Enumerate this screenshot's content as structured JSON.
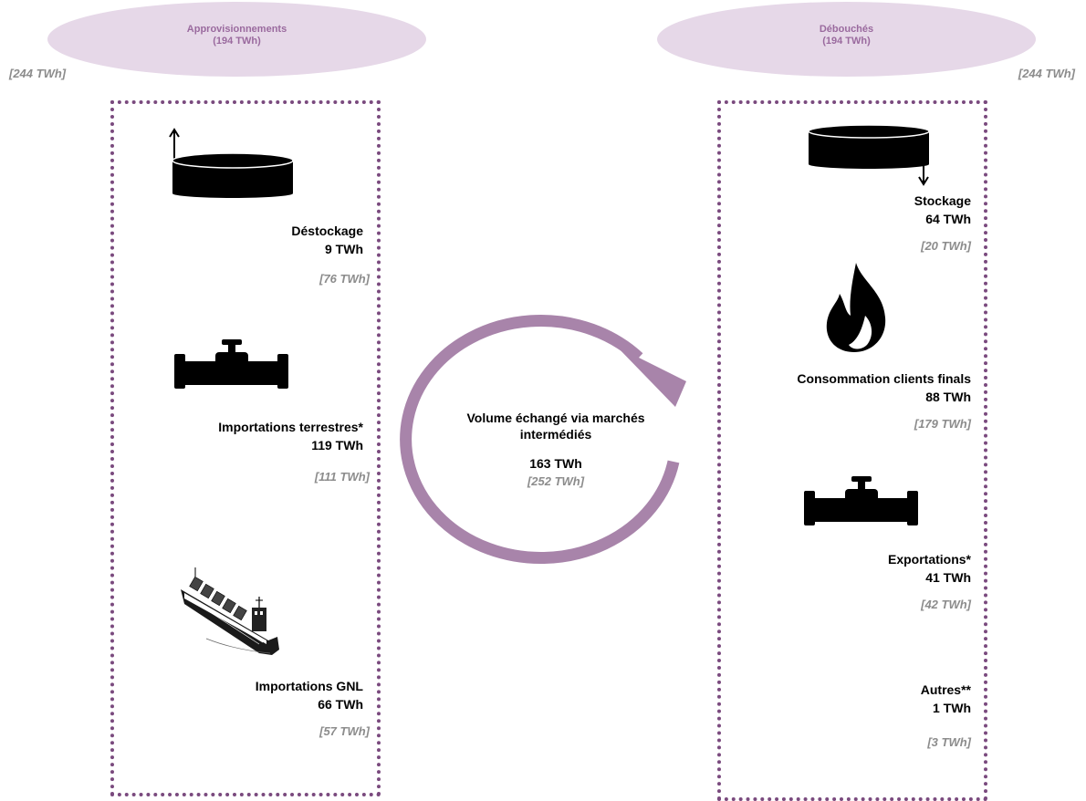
{
  "left_header": {
    "title": "Approvisionnements",
    "total": "(194 TWh)",
    "previous": "[244 TWh]"
  },
  "right_header": {
    "title": "Débouchés",
    "total": "(194 TWh)",
    "previous": "[244 TWh]"
  },
  "supplies": [
    {
      "name": "Déstockage",
      "value": "9 TWh",
      "previous": "[76 TWh]",
      "icon": "storage-tank-out-icon"
    },
    {
      "name": "Importations terrestres*",
      "value": "119 TWh",
      "previous": "[111 TWh]",
      "icon": "pipeline-icon"
    },
    {
      "name": "Importations GNL",
      "value": "66 TWh",
      "previous": "[57 TWh]",
      "icon": "lng-tanker-ship-icon"
    }
  ],
  "outlets": [
    {
      "name": "Stockage",
      "value": "64 TWh",
      "previous": "[20 TWh]",
      "icon": "storage-tank-in-icon"
    },
    {
      "name": "Consommation clients finals",
      "value": "88 TWh",
      "previous": "[179 TWh]",
      "icon": "gas-flame-icon"
    },
    {
      "name": "Exportations*",
      "value": "41 TWh",
      "previous": "[42 TWh]",
      "icon": "pipeline-icon"
    },
    {
      "name": "Autres**",
      "value": "1 TWh",
      "previous": "[3 TWh]"
    }
  ],
  "center": {
    "title": "Volume échangé via marchés intermédiés",
    "value": "163 TWh",
    "previous": "[252 TWh]"
  },
  "colors": {
    "ellipse": "#e6d8e8",
    "ellipse_text": "#9a6a9e",
    "cycle_arrow": "#a884aa",
    "dotted_border": "#7a4a7e",
    "previous_text": "#8c8c8c"
  }
}
